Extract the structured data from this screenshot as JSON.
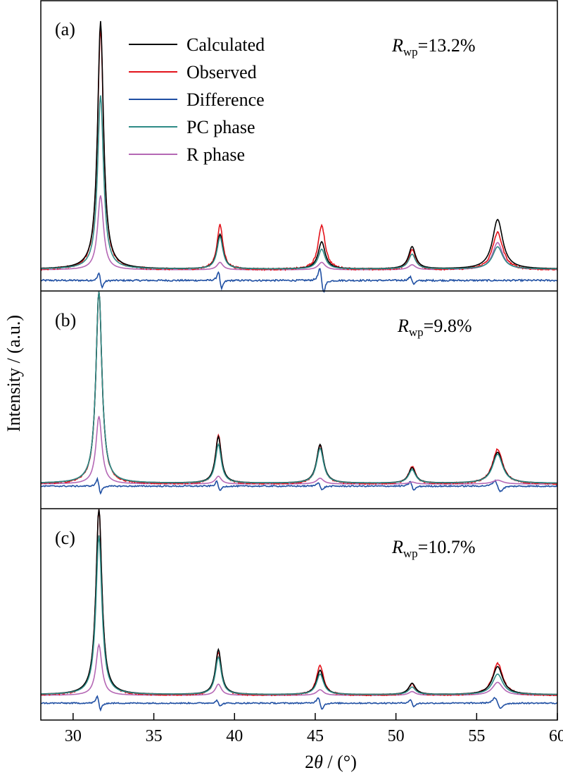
{
  "chart_data": {
    "type": "line",
    "xlabel_pre": "2",
    "xlabel_theta": "θ",
    "xlabel_post": " / (°)",
    "ylabel": "Intensity / (a.u.)",
    "xlim": [
      28,
      60
    ],
    "xticks": [
      30,
      35,
      40,
      45,
      50,
      55,
      60
    ],
    "legend": {
      "placement": "top-left of panel (a)",
      "entries": [
        {
          "name": "Calculated",
          "color": "#000000"
        },
        {
          "name": "Observed",
          "color": "#e3131b"
        },
        {
          "name": "Difference",
          "color": "#1f4fa3"
        },
        {
          "name": "PC phase",
          "color": "#2e8b86"
        },
        {
          "name": "R phase",
          "color": "#b568b5"
        }
      ]
    },
    "panels": [
      {
        "label": "(a)",
        "rwp_symbol": "R",
        "rwp_sub": "wp",
        "rwp_value": "=13.2%",
        "peaks": [
          {
            "x": 31.7,
            "calculated": 1.0,
            "observed": 0.98,
            "pc": 0.7,
            "r": 0.3
          },
          {
            "x": 39.1,
            "calculated": 0.14,
            "observed": 0.18,
            "pc": 0.13,
            "r": 0.03
          },
          {
            "x": 45.4,
            "calculated": 0.11,
            "observed": 0.18,
            "pc": 0.08,
            "r": 0.03
          },
          {
            "x": 51.0,
            "calculated": 0.09,
            "observed": 0.08,
            "pc": 0.06,
            "r": 0.02
          },
          {
            "x": 56.3,
            "calculated": 0.2,
            "observed": 0.15,
            "pc": 0.09,
            "r": 0.11
          }
        ]
      },
      {
        "label": "(b)",
        "rwp_symbol": "R",
        "rwp_sub": "wp",
        "rwp_value": "=9.8%",
        "peaks": [
          {
            "x": 31.6,
            "calculated": 1.0,
            "observed": 1.0,
            "pc": 1.0,
            "r": 0.35
          },
          {
            "x": 39.0,
            "calculated": 0.24,
            "observed": 0.25,
            "pc": 0.2,
            "r": 0.04
          },
          {
            "x": 45.3,
            "calculated": 0.2,
            "observed": 0.2,
            "pc": 0.18,
            "r": 0.03
          },
          {
            "x": 51.0,
            "calculated": 0.08,
            "observed": 0.09,
            "pc": 0.07,
            "r": 0.01
          },
          {
            "x": 56.3,
            "calculated": 0.16,
            "observed": 0.18,
            "pc": 0.15,
            "r": 0.02
          }
        ]
      },
      {
        "label": "(c)",
        "rwp_symbol": "R",
        "rwp_sub": "wp",
        "rwp_value": "=10.7%",
        "peaks": [
          {
            "x": 31.6,
            "calculated": 1.0,
            "observed": 1.0,
            "pc": 0.85,
            "r": 0.27
          },
          {
            "x": 39.0,
            "calculated": 0.24,
            "observed": 0.23,
            "pc": 0.2,
            "r": 0.06
          },
          {
            "x": 45.3,
            "calculated": 0.13,
            "observed": 0.16,
            "pc": 0.11,
            "r": 0.03
          },
          {
            "x": 51.0,
            "calculated": 0.06,
            "observed": 0.06,
            "pc": 0.04,
            "r": 0.02
          },
          {
            "x": 56.3,
            "calculated": 0.15,
            "observed": 0.17,
            "pc": 0.11,
            "r": 0.07
          }
        ]
      }
    ]
  }
}
